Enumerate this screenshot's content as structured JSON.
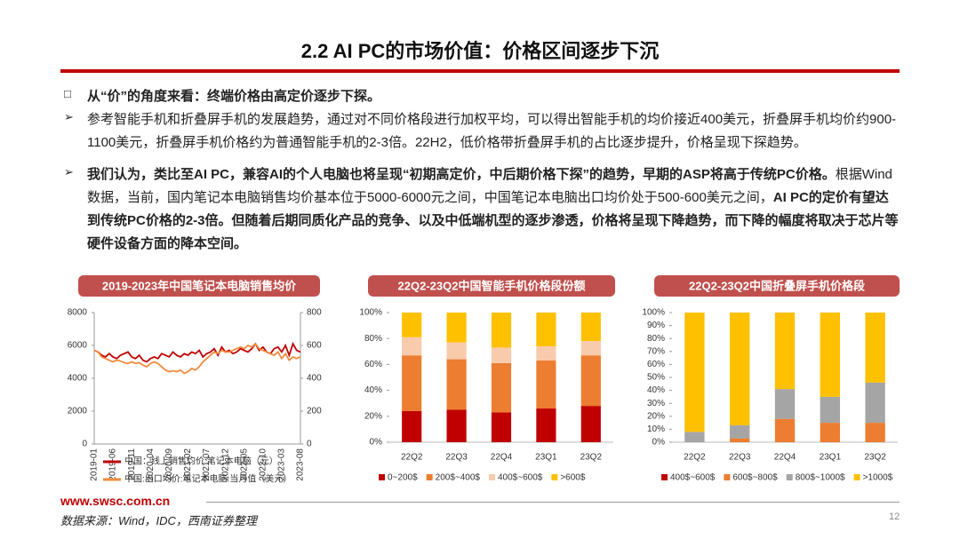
{
  "header": {
    "title": "2.2 AI PC的市场价值：价格区间逐步下沉"
  },
  "bullets": [
    {
      "segments": [
        {
          "text": "从“价”的角度来看：终端价格由高定价逐步下探。",
          "bold": true
        }
      ]
    },
    {
      "segments": [
        {
          "text": "参考智能手机和折叠屏手机的发展趋势，通过对不同价格段进行加权平均，可以得出智能手机的均价接近400美元，折叠屏手机均价约900-1100美元，折叠屏手机价格约为普通智能手机的2-3倍。22H2，低价格带折叠屏手机的占比逐步提升，价格呈现下探趋势。",
          "bold": false
        }
      ]
    },
    {
      "segments": [
        {
          "text": "我们认为，类比至AI PC，兼容AI的个人电脑也将呈现“初期高定价，中后期价格下探”的趋势，早期的ASP将高于传统PC价格。",
          "bold": true
        },
        {
          "text": "根据Wind数据，当前，国内笔记本电脑销售均价基本位于5000-6000元之间，中国笔记本电脑出口均价处于500-600美元之间，",
          "bold": false
        },
        {
          "text": "AI PC的定价有望达到传统PC价格的2-3倍。但随着后期同质化产品的竞争、以及中低端机型的逐步渗透，价格将呈现下降趋势，而下降的幅度将取决于芯片等硬件设备方面的降本空间。",
          "bold": true
        }
      ]
    }
  ],
  "chart_data": [
    {
      "type": "line",
      "title": "2019-2023年中国笔记本电脑销售均价",
      "categories": [
        "2019-01",
        null,
        null,
        null,
        null,
        "2019-06",
        null,
        null,
        null,
        null,
        "2019-11",
        null,
        null,
        null,
        null,
        "2020-04",
        null,
        null,
        null,
        null,
        "2020-09",
        null,
        null,
        null,
        null,
        "2021-02",
        null,
        null,
        null,
        null,
        "2021-07",
        null,
        null,
        null,
        null,
        "2021-12",
        null,
        null,
        null,
        null,
        "2022-05",
        null,
        null,
        null,
        null,
        "2022-10",
        null,
        null,
        null,
        null,
        "2023-03",
        null,
        null,
        null,
        null,
        "2023-08"
      ],
      "ylim": [
        0,
        8000
      ],
      "yticks": [
        0,
        2000,
        4000,
        6000,
        8000
      ],
      "y2lim": [
        0,
        800
      ],
      "y2ticks": [
        0,
        200,
        400,
        600,
        800
      ],
      "series": [
        {
          "name": "中国：线上销售均价:笔记本电脑（元）",
          "color": "#c00000",
          "axis": "y",
          "values": [
            5700,
            5600,
            5400,
            5300,
            5500,
            5300,
            5200,
            5400,
            5500,
            5600,
            5300,
            5200,
            5400,
            5100,
            5000,
            5200,
            5300,
            5200,
            5500,
            5400,
            5300,
            5600,
            5400,
            5300,
            5500,
            5400,
            5600,
            5500,
            5700,
            5300,
            5500,
            5600,
            5800,
            5400,
            5900,
            5600,
            5700,
            5500,
            5600,
            5800,
            5700,
            5600,
            5800,
            6100,
            5700,
            5900,
            5600,
            5500,
            5800,
            5900,
            5600,
            6000,
            5400,
            6100,
            5700,
            5600
          ]
        },
        {
          "name": "中国:出口均价:笔记本电脑:当月值（美元）",
          "color": "#f08a3c",
          "axis": "y2",
          "values": [
            570,
            560,
            530,
            520,
            510,
            500,
            510,
            505,
            495,
            490,
            500,
            490,
            495,
            480,
            470,
            490,
            500,
            490,
            470,
            450,
            440,
            445,
            440,
            450,
            430,
            440,
            460,
            450,
            470,
            500,
            520,
            540,
            560,
            550,
            570,
            560,
            560,
            570,
            580,
            590,
            580,
            600,
            590,
            610,
            580,
            570,
            560,
            550,
            540,
            560,
            520,
            550,
            510,
            530,
            520,
            530
          ]
        }
      ]
    },
    {
      "type": "bar",
      "stacked": true,
      "title": "22Q2-23Q2中国智能手机价格段份额",
      "categories": [
        "22Q2",
        "22Q3",
        "22Q4",
        "23Q1",
        "23Q2"
      ],
      "ylim": [
        0,
        100
      ],
      "yticks": [
        {
          "value": 0,
          "label": "0%"
        },
        {
          "value": 20,
          "label": "20%"
        },
        {
          "value": 40,
          "label": "40%"
        },
        {
          "value": 60,
          "label": "60%"
        },
        {
          "value": 80,
          "label": "80%"
        },
        {
          "value": 100,
          "label": "100%"
        }
      ],
      "series": [
        {
          "name": "0~200$",
          "color": "#c00000",
          "values": [
            24,
            25,
            23,
            26,
            28
          ]
        },
        {
          "name": "200$~400$",
          "color": "#ed7d31",
          "values": [
            43,
            39,
            38,
            37,
            39
          ]
        },
        {
          "name": "400$~600$",
          "color": "#f8cbad",
          "values": [
            14,
            13,
            12,
            11,
            11
          ]
        },
        {
          "name": ">600$",
          "color": "#ffc000",
          "values": [
            19,
            23,
            27,
            26,
            22
          ]
        }
      ]
    },
    {
      "type": "bar",
      "stacked": true,
      "title": "22Q2-23Q2中国折叠屏手机价格段",
      "categories": [
        "22Q2",
        "22Q3",
        "22Q4",
        "23Q1",
        "23Q2"
      ],
      "ylim": [
        0,
        100
      ],
      "yticks": [
        {
          "value": 0,
          "label": "0%"
        },
        {
          "value": 10,
          "label": "10%"
        },
        {
          "value": 20,
          "label": "20%"
        },
        {
          "value": 30,
          "label": "30%"
        },
        {
          "value": 40,
          "label": "40%"
        },
        {
          "value": 50,
          "label": "50%"
        },
        {
          "value": 60,
          "label": "60%"
        },
        {
          "value": 70,
          "label": "70%"
        },
        {
          "value": 80,
          "label": "80%"
        },
        {
          "value": 90,
          "label": "90%"
        },
        {
          "value": 100,
          "label": "100%"
        }
      ],
      "series": [
        {
          "name": "400$~600$",
          "color": "#c00000",
          "values": [
            0,
            0,
            0,
            0,
            0
          ]
        },
        {
          "name": "600$~800$",
          "color": "#ed7d31",
          "values": [
            0,
            3,
            18,
            15,
            15
          ]
        },
        {
          "name": "800$~1000$",
          "color": "#a5a5a5",
          "values": [
            8,
            10,
            23,
            20,
            31
          ]
        },
        {
          "name": ">1000$",
          "color": "#ffc000",
          "values": [
            92,
            87,
            59,
            65,
            54
          ]
        }
      ]
    }
  ],
  "footer": {
    "url": "www.swsc.com.cn",
    "source": "数据来源：Wind，IDC，西南证券整理",
    "page": "12"
  }
}
